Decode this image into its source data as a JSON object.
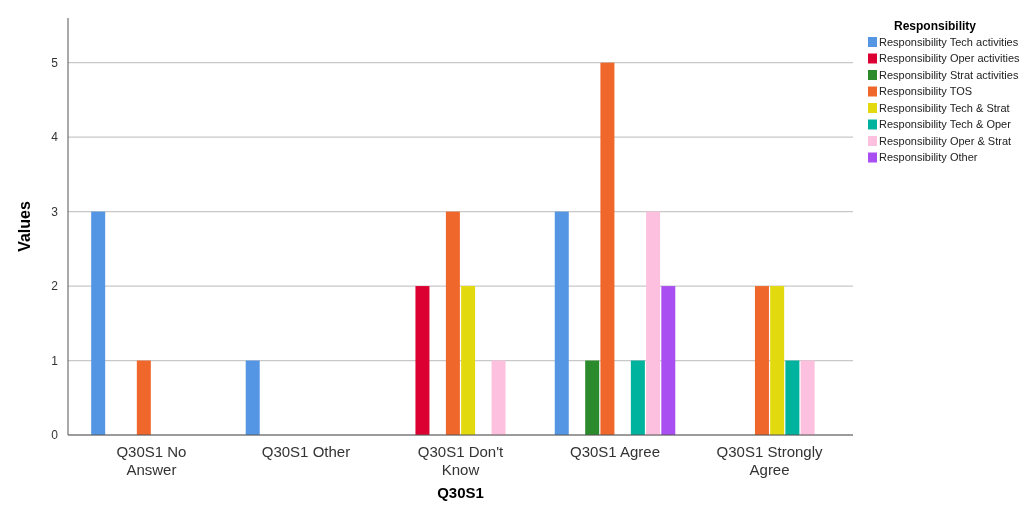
{
  "chart_data": {
    "type": "bar",
    "xlabel": "Q30S1",
    "ylabel": "Values",
    "legend_title": "Responsibility",
    "legend": "top right",
    "grid": "y",
    "categories": [
      "Q30S1 No Answer",
      "Q30S1 Other",
      "Q30S1 Don't Know",
      "Q30S1 Agree",
      "Q30S1 Strongly Agree"
    ],
    "ylim": [
      0,
      5.6
    ],
    "yticks": [
      0,
      1,
      2,
      3,
      4,
      5
    ],
    "series": [
      {
        "name": "Responsibility Tech activities",
        "color": "#5596e4",
        "values": [
          3,
          1,
          0,
          3,
          0
        ]
      },
      {
        "name": "Responsibility Oper activities",
        "color": "#dc0032",
        "values": [
          0,
          0,
          2,
          0,
          0
        ]
      },
      {
        "name": "Responsibility Strat activities",
        "color": "#2b8a2b",
        "values": [
          0,
          0,
          0,
          1,
          0
        ]
      },
      {
        "name": "Responsibility TOS",
        "color": "#f0672b",
        "values": [
          1,
          0,
          3,
          5,
          2
        ]
      },
      {
        "name": "Responsibility Tech & Strat",
        "color": "#e2d90e",
        "values": [
          0,
          0,
          2,
          0,
          2
        ]
      },
      {
        "name": "Responsibility Tech & Oper",
        "color": "#00b39e",
        "values": [
          0,
          0,
          0,
          1,
          1
        ]
      },
      {
        "name": "Responsibility Oper & Strat",
        "color": "#fdc1df",
        "values": [
          0,
          0,
          1,
          3,
          1
        ]
      },
      {
        "name": "Responsibility Other",
        "color": "#a94ef0",
        "values": [
          0,
          0,
          0,
          2,
          0
        ]
      }
    ]
  }
}
